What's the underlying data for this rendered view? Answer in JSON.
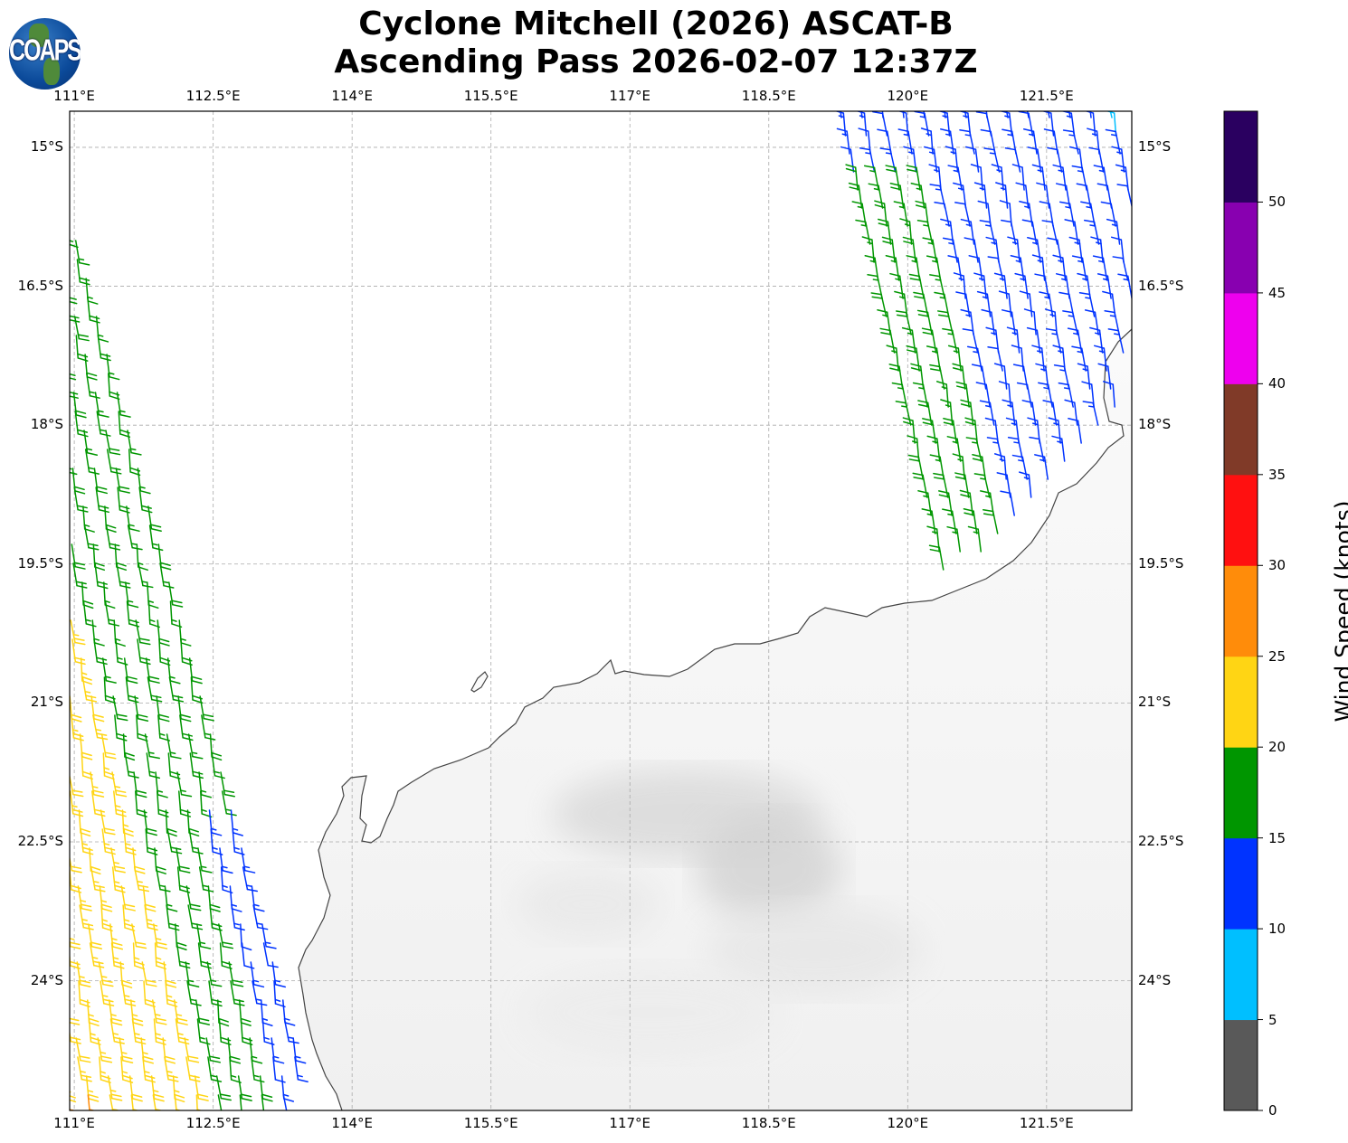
{
  "title": {
    "line1": "Cyclone Mitchell (2026) ASCAT-B",
    "line2": "Ascending Pass 2026-02-07 12:37Z"
  },
  "logo": {
    "text": "COAPS"
  },
  "map": {
    "lon_range": [
      110.95,
      122.42
    ],
    "lat_range": [
      -14.61,
      -25.4
    ],
    "lon_ticks": [
      111,
      112.5,
      114,
      115.5,
      117,
      118.5,
      120,
      121.5
    ],
    "lon_labels": [
      "111°E",
      "112.5°E",
      "114°E",
      "115.5°E",
      "117°E",
      "118.5°E",
      "120°E",
      "121.5°E"
    ],
    "lat_ticks": [
      -15,
      -16.5,
      -18,
      -19.5,
      -21,
      -22.5,
      -24
    ],
    "lat_labels": [
      "15°S",
      "16.5°S",
      "18°S",
      "19.5°S",
      "21°S",
      "22.5°S",
      "24°S"
    ]
  },
  "colorbar": {
    "label": "Wind Speed (knots)",
    "bounds": [
      0,
      5,
      10,
      15,
      20,
      25,
      30,
      35,
      40,
      45,
      50,
      55
    ],
    "tick_labels": [
      "0",
      "5",
      "10",
      "15",
      "20",
      "25",
      "30",
      "35",
      "40",
      "45",
      "50"
    ],
    "colors": [
      "#595959",
      "#00bfff",
      "#0033ff",
      "#009600",
      "#ffd514",
      "#ff8c0a",
      "#ff1010",
      "#803a28",
      "#ee00ee",
      "#8800b0",
      "#2a0060"
    ]
  }
}
